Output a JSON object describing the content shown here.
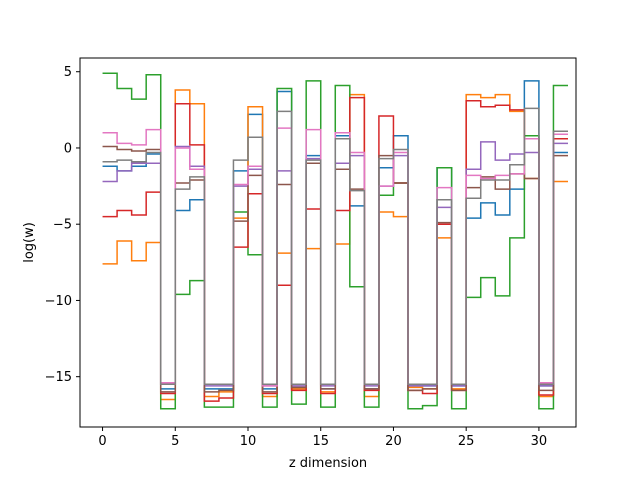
{
  "chart_data": {
    "type": "line",
    "step": "post",
    "xlabel": "z dimension",
    "ylabel": "log(w)",
    "xlim": [
      -1.55,
      32.55
    ],
    "ylim": [
      -18.3,
      5.9
    ],
    "xticks": [
      0,
      5,
      10,
      15,
      20,
      25,
      30
    ],
    "yticks": [
      5,
      0,
      -5,
      -10,
      -15
    ],
    "grid": false,
    "legend": "none",
    "x": [
      0,
      1,
      2,
      3,
      4,
      5,
      6,
      7,
      8,
      9,
      10,
      11,
      12,
      13,
      14,
      15,
      16,
      17,
      18,
      19,
      20,
      21,
      22,
      23,
      24,
      25,
      26,
      27,
      28,
      29,
      30,
      31,
      32
    ],
    "series": [
      {
        "color": "#1f77b4",
        "values": [
          -1.2,
          -1.5,
          -1.2,
          -0.4,
          -15.8,
          -4.1,
          -3.4,
          -15.8,
          -15.8,
          -1.5,
          2.2,
          -15.8,
          3.7,
          -15.8,
          -0.5,
          -15.8,
          0.8,
          -3.8,
          -15.8,
          -1.3,
          0.8,
          -15.6,
          -15.6,
          -1.3,
          -15.6,
          -4.6,
          -3.6,
          -4.4,
          -2.7,
          4.4,
          -15.6,
          -0.3,
          -0.3
        ]
      },
      {
        "color": "#ff7f0e",
        "values": [
          -7.6,
          -6.1,
          -7.4,
          -6.2,
          -16.5,
          3.8,
          2.9,
          -16.3,
          -16.0,
          -4.6,
          2.7,
          -16.3,
          -6.9,
          -15.8,
          -6.6,
          -16.0,
          -6.3,
          3.5,
          -16.3,
          -4.2,
          -4.5,
          -15.7,
          -15.8,
          -5.9,
          -15.8,
          3.5,
          3.3,
          3.5,
          2.4,
          -2.0,
          -16.3,
          -2.2,
          -2.2
        ]
      },
      {
        "color": "#2ca02c",
        "values": [
          4.9,
          3.9,
          3.2,
          4.8,
          -17.1,
          -9.6,
          -8.7,
          -17.0,
          -17.0,
          -4.2,
          -7.0,
          -17.0,
          3.9,
          -16.8,
          4.4,
          -17.0,
          4.1,
          -9.1,
          -17.0,
          -3.1,
          -2.3,
          -17.1,
          -16.9,
          -1.3,
          -17.1,
          -9.8,
          -8.5,
          -9.7,
          -5.9,
          0.8,
          -17.1,
          4.1,
          4.1
        ]
      },
      {
        "color": "#d62728",
        "values": [
          -4.5,
          -4.1,
          -4.4,
          -2.9,
          -16.1,
          2.9,
          0.2,
          -16.6,
          -16.4,
          -6.5,
          -3.0,
          -16.1,
          -9.0,
          -15.9,
          -4.0,
          -16.1,
          -4.1,
          3.3,
          -15.9,
          2.1,
          -2.3,
          -15.9,
          -16.1,
          -5.0,
          -15.9,
          3.1,
          2.7,
          2.8,
          2.5,
          0.6,
          -16.2,
          0.6,
          0.6
        ]
      },
      {
        "color": "#9467bd",
        "values": [
          -2.2,
          -1.5,
          -1.0,
          -1.0,
          -15.5,
          0.1,
          -1.2,
          -15.6,
          -15.6,
          -2.5,
          -1.4,
          -15.6,
          -1.5,
          -15.6,
          -0.7,
          -15.6,
          -1.0,
          -0.5,
          -15.6,
          -2.5,
          -0.5,
          -15.6,
          -15.6,
          -3.9,
          -15.6,
          -1.4,
          0.4,
          -0.8,
          -0.4,
          -0.3,
          -15.6,
          0.3,
          0.3
        ]
      },
      {
        "color": "#8c564b",
        "values": [
          0.1,
          -0.1,
          -0.2,
          -0.1,
          -16.0,
          -2.3,
          -2.1,
          -16.0,
          -15.9,
          -4.8,
          -1.8,
          -16.0,
          -2.4,
          -15.7,
          -1.0,
          -15.8,
          -1.4,
          -2.7,
          -15.8,
          -0.5,
          -2.3,
          -15.9,
          -15.8,
          -4.9,
          -15.9,
          -2.6,
          -1.9,
          -2.7,
          -1.7,
          -2.0,
          -15.9,
          -0.5,
          -0.5
        ]
      },
      {
        "color": "#e377c2",
        "values": [
          1.0,
          0.3,
          0.2,
          1.2,
          -15.4,
          0.0,
          -1.4,
          -15.5,
          -15.5,
          -2.4,
          -1.2,
          -15.6,
          1.3,
          -15.5,
          1.2,
          -15.5,
          1.0,
          -0.3,
          -15.5,
          -2.5,
          -0.3,
          -15.5,
          -15.5,
          -2.6,
          -15.5,
          -1.8,
          -2.0,
          -1.8,
          -1.7,
          0.6,
          -15.4,
          0.9,
          0.9
        ]
      },
      {
        "color": "#7f7f7f",
        "values": [
          -0.9,
          -0.8,
          -0.9,
          -0.3,
          -15.5,
          -2.7,
          -1.9,
          -15.5,
          -15.5,
          -0.8,
          0.7,
          -15.5,
          2.4,
          -15.5,
          -0.8,
          -15.5,
          0.6,
          -2.8,
          -15.5,
          -0.7,
          -0.1,
          -15.5,
          -15.5,
          -3.4,
          -15.5,
          -3.3,
          -2.1,
          -2.1,
          -1.1,
          2.6,
          -15.5,
          1.1,
          1.1
        ]
      }
    ]
  }
}
